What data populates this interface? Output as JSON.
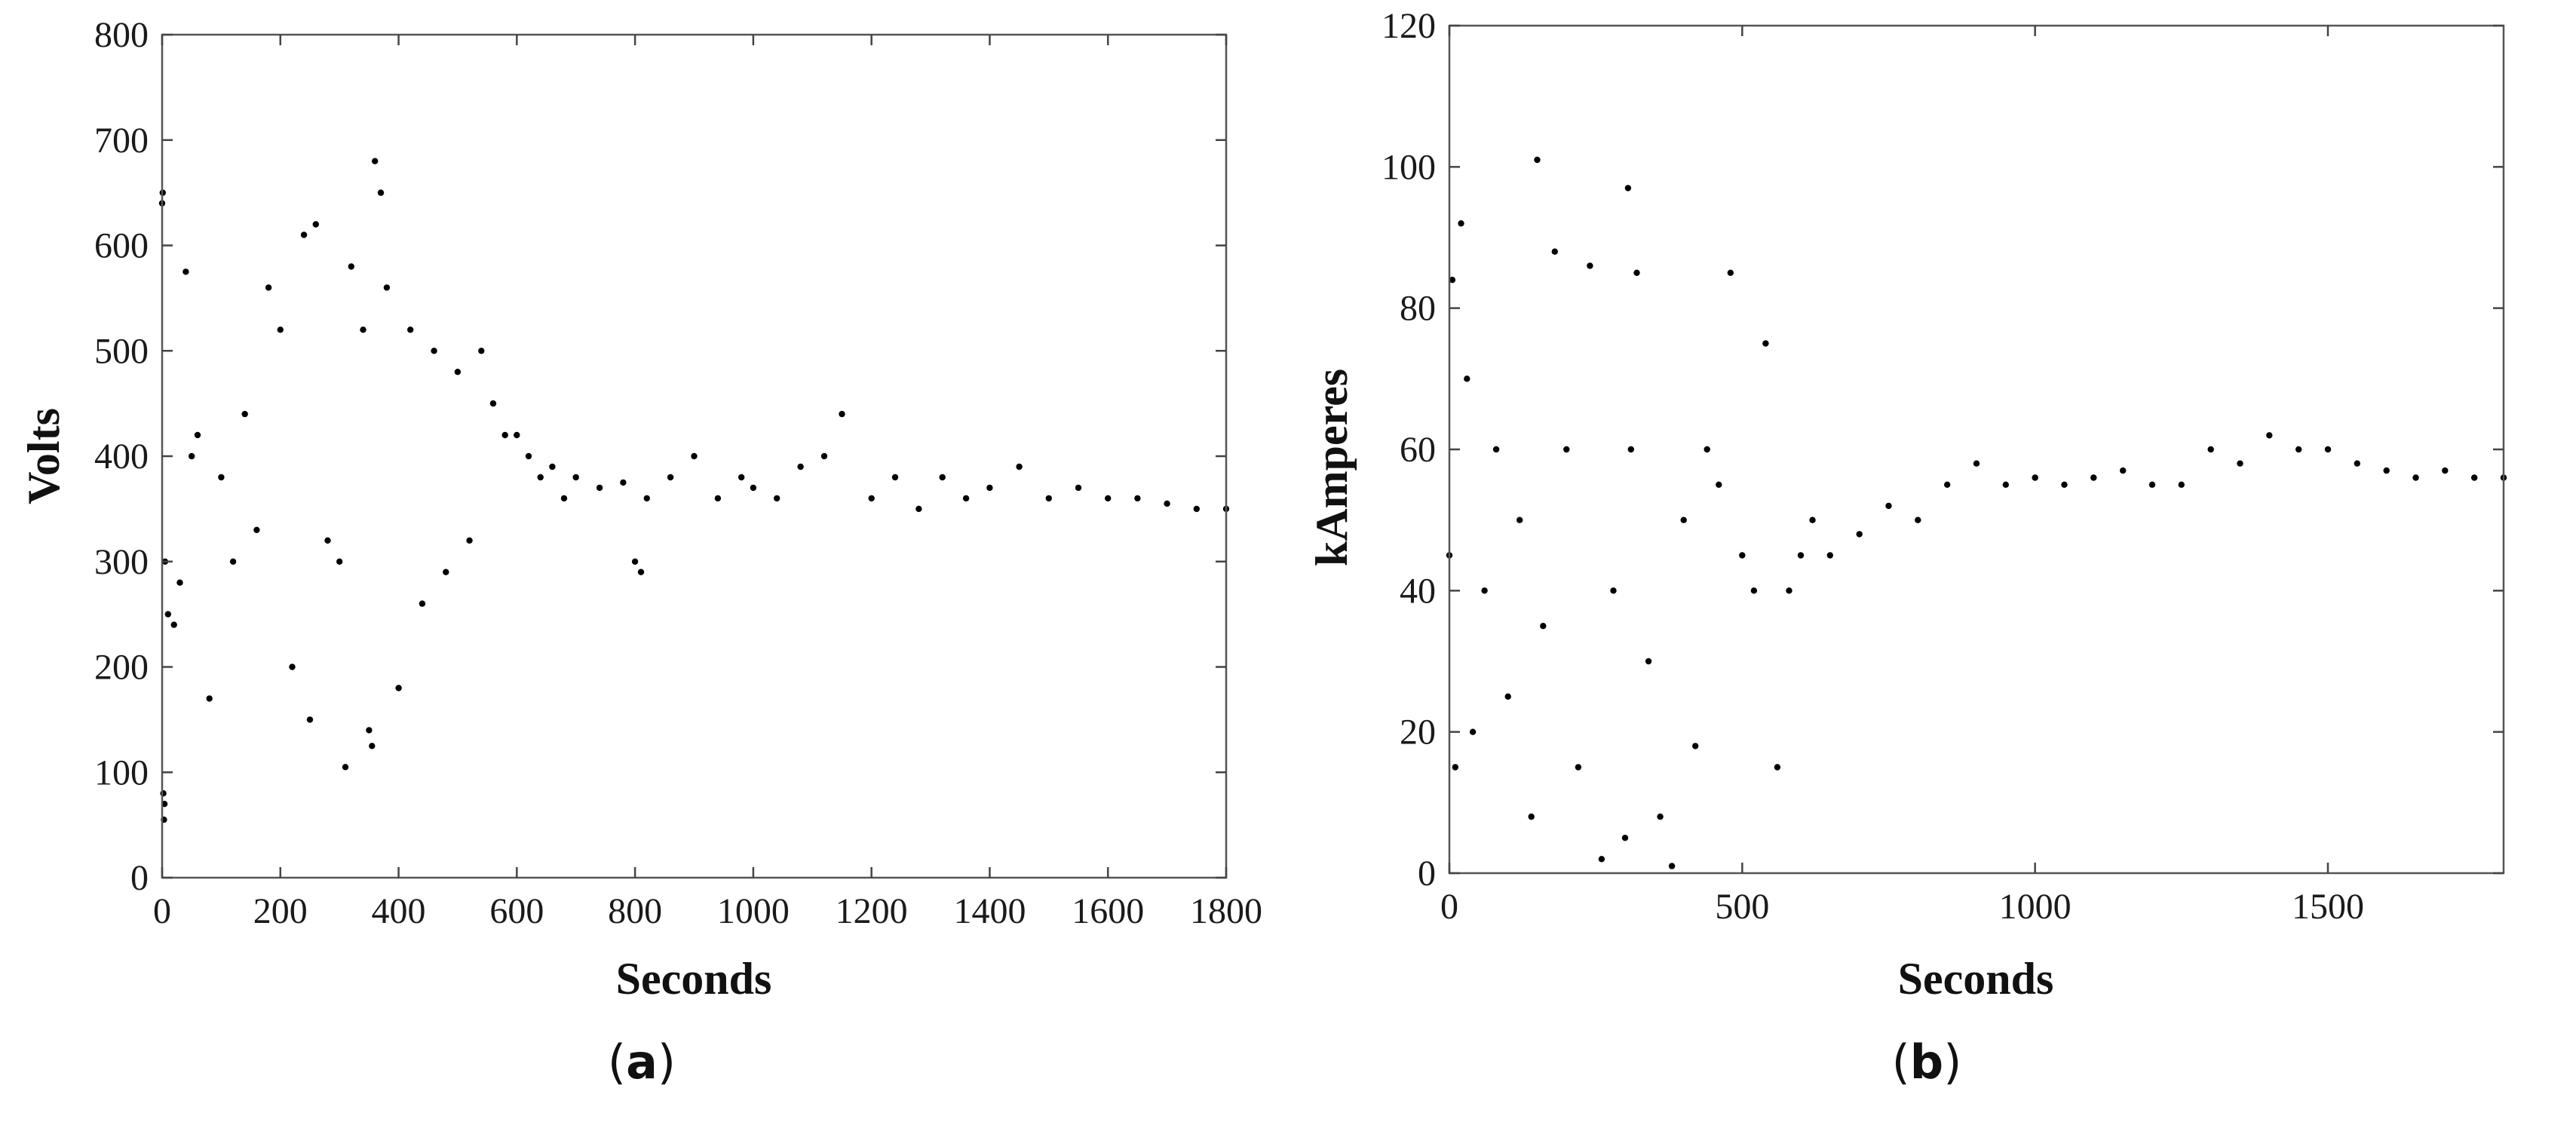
{
  "chart_data": [
    {
      "type": "scatter",
      "panel_label": "a",
      "title": "",
      "xlabel": "Seconds",
      "ylabel": "Volts",
      "xlim": [
        0,
        1800
      ],
      "ylim": [
        0,
        800
      ],
      "xticks": [
        "0",
        "200",
        "400",
        "600",
        "800",
        "1000",
        "1200",
        "1400",
        "1600",
        "1800"
      ],
      "yticks": [
        "0",
        "100",
        "200",
        "300",
        "400",
        "500",
        "600",
        "700",
        "800"
      ],
      "grid": false,
      "marker_color": "#000000",
      "series": [
        {
          "x": [
            0,
            1,
            2,
            3,
            4,
            5,
            10,
            20,
            30,
            40,
            50,
            60,
            80,
            100,
            120,
            140,
            160,
            180,
            200,
            220,
            240,
            250,
            260,
            280,
            300,
            310,
            320,
            340,
            350,
            355,
            360,
            370,
            380,
            400,
            420,
            440,
            460,
            480,
            500,
            520,
            540,
            560,
            580,
            600,
            620,
            640,
            660,
            680,
            700,
            740,
            780,
            800,
            810,
            820,
            860,
            900,
            940,
            980,
            1000,
            1040,
            1080,
            1120,
            1150,
            1200,
            1240,
            1280,
            1320,
            1360,
            1400,
            1450,
            1500,
            1550,
            1600,
            1650,
            1700,
            1750,
            1800
          ],
          "y": [
            640,
            650,
            80,
            55,
            70,
            300,
            250,
            240,
            280,
            575,
            400,
            420,
            170,
            380,
            300,
            440,
            330,
            560,
            520,
            200,
            610,
            150,
            620,
            320,
            300,
            105,
            580,
            520,
            140,
            125,
            680,
            650,
            560,
            180,
            520,
            260,
            500,
            290,
            480,
            320,
            500,
            450,
            420,
            420,
            400,
            380,
            390,
            360,
            380,
            370,
            375,
            300,
            290,
            360,
            380,
            400,
            360,
            380,
            370,
            360,
            390,
            400,
            440,
            360,
            380,
            350,
            380,
            360,
            370,
            390,
            360,
            370,
            360,
            360,
            355,
            350,
            350
          ]
        }
      ]
    },
    {
      "type": "scatter",
      "panel_label": "b",
      "title": "",
      "xlabel": "Seconds",
      "ylabel": "kAmperes",
      "xlim": [
        0,
        1800
      ],
      "ylim": [
        0,
        120
      ],
      "xticks": [
        "0",
        "500",
        "1000",
        "1500"
      ],
      "yticks": [
        "0",
        "20",
        "40",
        "60",
        "80",
        "100",
        "120"
      ],
      "grid": false,
      "marker_color": "#000000",
      "series": [
        {
          "x": [
            0,
            5,
            10,
            20,
            30,
            40,
            60,
            80,
            100,
            120,
            140,
            150,
            160,
            180,
            200,
            220,
            240,
            260,
            280,
            300,
            305,
            310,
            320,
            340,
            360,
            380,
            400,
            420,
            440,
            460,
            480,
            500,
            520,
            540,
            560,
            580,
            600,
            620,
            650,
            700,
            750,
            800,
            850,
            900,
            950,
            1000,
            1050,
            1100,
            1150,
            1200,
            1250,
            1300,
            1350,
            1400,
            1450,
            1500,
            1550,
            1600,
            1650,
            1700,
            1750,
            1800
          ],
          "y": [
            45,
            84,
            15,
            92,
            70,
            20,
            40,
            60,
            25,
            50,
            8,
            101,
            35,
            88,
            60,
            15,
            86,
            2,
            40,
            5,
            97,
            60,
            85,
            30,
            8,
            1,
            50,
            18,
            60,
            55,
            85,
            45,
            40,
            75,
            15,
            40,
            45,
            50,
            45,
            48,
            52,
            50,
            55,
            58,
            55,
            56,
            55,
            56,
            57,
            55,
            55,
            60,
            58,
            62,
            60,
            60,
            58,
            57,
            56,
            57,
            56,
            56
          ]
        }
      ]
    }
  ]
}
